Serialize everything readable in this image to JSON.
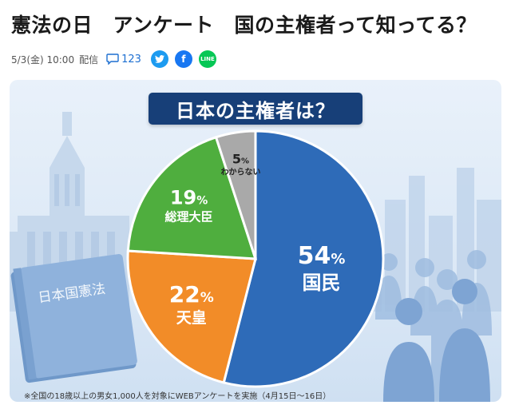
{
  "article": {
    "headline": "憲法の日　アンケート　国の主権者って知ってる？",
    "date_time": "5/3(金) 10:00",
    "delivery_label": "配信",
    "comment_count": "123",
    "share_icons": [
      "twitter-icon",
      "facebook-icon",
      "line-icon"
    ]
  },
  "figure": {
    "badge": "日本の主権者は？",
    "book_title": "日本国憲法",
    "footnote": "※全国の18歳以上の男女1,000人を対象にWEBアンケートを実施（4月15日〜16日）"
  },
  "chart_data": {
    "type": "pie",
    "title": "日本の主権者は？",
    "unit": "%",
    "slices": [
      {
        "label": "国民",
        "value": 54,
        "color": "#2e6bb8"
      },
      {
        "label": "天皇",
        "value": 22,
        "color": "#f28c28"
      },
      {
        "label": "総理大臣",
        "value": 19,
        "color": "#4fae3e"
      },
      {
        "label": "わからない",
        "value": 5,
        "color": "#a9a9a9"
      }
    ],
    "start": "12 o'clock",
    "direction": "clockwise",
    "legend": "none"
  },
  "colors": {
    "badge_bg": "#173f78",
    "link_blue": "#1d6fd1"
  }
}
